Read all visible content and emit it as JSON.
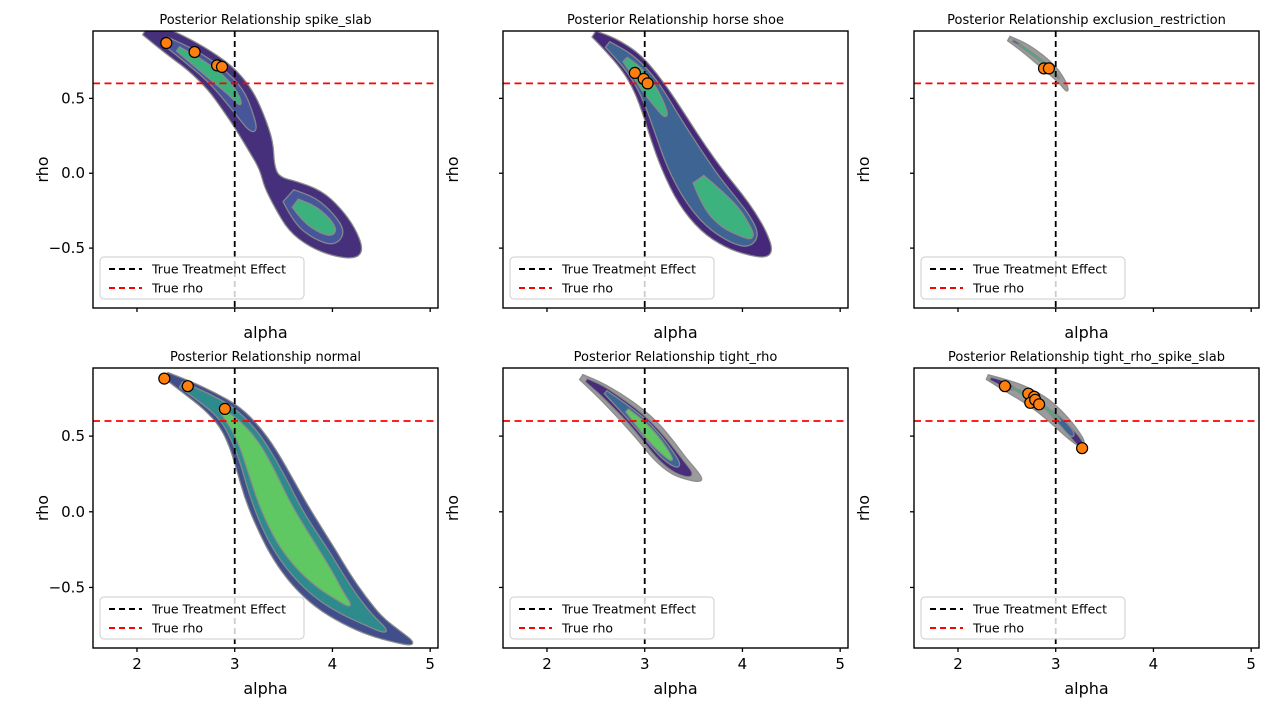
{
  "figure": {
    "background": "#ffffff",
    "xlabel": "alpha",
    "ylabel": "rho",
    "x_domain": [
      1.55,
      5.08
    ],
    "y_domain": [
      -0.9,
      0.95
    ],
    "x_ticks": [
      2,
      3,
      4,
      5
    ],
    "x_tick_labels": [
      "2",
      "3",
      "4",
      "5"
    ],
    "y_ticks": [
      0.5,
      0.0,
      -0.5
    ],
    "y_tick_labels": [
      "0.5",
      "0.0",
      "−0.5"
    ],
    "true_treatment_effect_alpha": 3.0,
    "true_rho": 0.6,
    "legend": {
      "items": [
        {
          "label": "True Treatment Effect",
          "color": "#000000"
        },
        {
          "label": "True rho",
          "color": "#ff0000"
        }
      ]
    },
    "colors": {
      "scatter_fill": "#ff7f0e",
      "scatter_edge": "#000000",
      "contour_line": "#8a8a8a",
      "true_effect_line": "#000000",
      "true_rho_line": "#ff0000",
      "axes_edge": "#000000"
    }
  },
  "chart_data": [
    {
      "type": "contour",
      "id": "spike_slab",
      "title": "Posterior Relationship spike_slab",
      "scatter": [
        [
          2.3,
          0.87
        ],
        [
          2.59,
          0.81
        ],
        [
          2.82,
          0.72
        ],
        [
          2.87,
          0.71
        ]
      ],
      "bands": [
        {
          "color": "#46307c",
          "spine": [
            [
              2.1,
              0.97
            ],
            [
              2.35,
              0.87
            ],
            [
              2.6,
              0.77
            ],
            [
              2.85,
              0.64
            ],
            [
              3.02,
              0.5
            ],
            [
              3.15,
              0.35
            ],
            [
              3.27,
              0.18
            ],
            [
              3.33,
              0.04
            ],
            [
              3.38,
              -0.06
            ],
            [
              3.52,
              -0.14
            ],
            [
              3.72,
              -0.25
            ],
            [
              3.92,
              -0.36
            ],
            [
              4.12,
              -0.46
            ],
            [
              4.28,
              -0.54
            ]
          ],
          "widths": [
            16,
            24,
            28,
            34,
            36,
            32,
            26,
            15,
            18,
            34,
            52,
            50,
            36,
            12
          ]
        },
        {
          "color": "#47569b",
          "spine": [
            [
              2.3,
              0.88
            ],
            [
              2.55,
              0.78
            ],
            [
              2.8,
              0.66
            ],
            [
              3.0,
              0.52
            ],
            [
              3.12,
              0.38
            ],
            [
              3.2,
              0.28
            ]
          ],
          "widths": [
            9,
            16,
            20,
            22,
            15,
            7
          ]
        },
        {
          "color": "#47569b",
          "spine": [
            [
              3.55,
              -0.15
            ],
            [
              3.72,
              -0.25
            ],
            [
              3.92,
              -0.36
            ],
            [
              4.08,
              -0.44
            ]
          ],
          "widths": [
            16,
            34,
            32,
            17
          ]
        },
        {
          "color": "#3bb27d",
          "spine": [
            [
              2.42,
              0.83
            ],
            [
              2.62,
              0.74
            ],
            [
              2.82,
              0.64
            ],
            [
              2.98,
              0.54
            ],
            [
              3.06,
              0.46
            ]
          ],
          "widths": [
            5,
            10,
            12,
            9,
            4
          ]
        },
        {
          "color": "#3bb27d",
          "spine": [
            [
              3.62,
              -0.2
            ],
            [
              3.76,
              -0.27
            ],
            [
              3.92,
              -0.35
            ],
            [
              4.02,
              -0.4
            ]
          ],
          "widths": [
            10,
            20,
            18,
            8
          ]
        }
      ]
    },
    {
      "type": "contour",
      "id": "horse_shoe",
      "title": "Posterior Relationship horse shoe",
      "scatter": [
        [
          2.9,
          0.67
        ],
        [
          2.99,
          0.63
        ],
        [
          3.03,
          0.6
        ]
      ],
      "bands": [
        {
          "color": "#46287b",
          "spine": [
            [
              2.48,
              0.93
            ],
            [
              2.65,
              0.86
            ],
            [
              2.85,
              0.75
            ],
            [
              3.0,
              0.62
            ],
            [
              3.12,
              0.48
            ],
            [
              3.25,
              0.3
            ],
            [
              3.4,
              0.1
            ],
            [
              3.58,
              -0.1
            ],
            [
              3.78,
              -0.26
            ],
            [
              3.98,
              -0.38
            ],
            [
              4.15,
              -0.47
            ],
            [
              4.28,
              -0.54
            ]
          ],
          "widths": [
            7,
            16,
            24,
            28,
            34,
            42,
            50,
            56,
            56,
            46,
            30,
            10
          ]
        },
        {
          "color": "#3d6493",
          "spine": [
            [
              2.62,
              0.86
            ],
            [
              2.82,
              0.76
            ],
            [
              3.0,
              0.62
            ],
            [
              3.12,
              0.48
            ],
            [
              3.25,
              0.3
            ],
            [
              3.4,
              0.1
            ],
            [
              3.58,
              -0.1
            ],
            [
              3.78,
              -0.26
            ],
            [
              3.98,
              -0.38
            ],
            [
              4.12,
              -0.46
            ]
          ],
          "widths": [
            7,
            15,
            20,
            24,
            30,
            38,
            42,
            42,
            33,
            16
          ]
        },
        {
          "color": "#3cb37e",
          "spine": [
            [
              2.8,
              0.76
            ],
            [
              2.92,
              0.68
            ],
            [
              3.05,
              0.56
            ],
            [
              3.15,
              0.46
            ],
            [
              3.22,
              0.38
            ]
          ],
          "widths": [
            6,
            12,
            14,
            10,
            5
          ]
        },
        {
          "color": "#3cb37e",
          "spine": [
            [
              3.55,
              -0.04
            ],
            [
              3.7,
              -0.18
            ],
            [
              3.88,
              -0.3
            ],
            [
              4.02,
              -0.38
            ],
            [
              4.1,
              -0.43
            ]
          ],
          "widths": [
            13,
            26,
            26,
            15,
            6
          ]
        }
      ]
    },
    {
      "type": "contour",
      "id": "exclusion_restriction",
      "title": "Posterior Relationship exclusion_restriction",
      "scatter": [
        [
          2.88,
          0.7
        ],
        [
          2.93,
          0.7
        ]
      ],
      "bands": [
        {
          "color": "#9b9b9b",
          "spine": [
            [
              2.52,
              0.9
            ],
            [
              2.68,
              0.84
            ],
            [
              2.84,
              0.76
            ],
            [
              2.98,
              0.68
            ],
            [
              3.08,
              0.6
            ],
            [
              3.12,
              0.55
            ]
          ],
          "widths": [
            5,
            9,
            11,
            10,
            6,
            3
          ]
        },
        {
          "color": "#3d6493",
          "spine": [
            [
              2.56,
              0.885
            ],
            [
              2.66,
              0.85
            ]
          ],
          "widths": [
            2.5,
            2.5
          ]
        },
        {
          "color": "#3bb27d",
          "spine": [
            [
              2.62,
              0.86
            ],
            [
              2.8,
              0.78
            ],
            [
              2.95,
              0.7
            ],
            [
              3.04,
              0.63
            ]
          ],
          "widths": [
            2,
            2.5,
            2.5,
            2
          ]
        }
      ]
    },
    {
      "type": "contour",
      "id": "normal",
      "title": "Posterior Relationship normal",
      "scatter": [
        [
          2.28,
          0.88
        ],
        [
          2.52,
          0.83
        ],
        [
          2.9,
          0.68
        ]
      ],
      "bands": [
        {
          "color": "#404f8b",
          "spine": [
            [
              2.3,
              0.9
            ],
            [
              2.52,
              0.82
            ],
            [
              2.75,
              0.73
            ],
            [
              2.95,
              0.63
            ],
            [
              3.1,
              0.5
            ],
            [
              3.22,
              0.35
            ],
            [
              3.35,
              0.15
            ],
            [
              3.5,
              -0.05
            ],
            [
              3.65,
              -0.22
            ],
            [
              3.82,
              -0.38
            ],
            [
              4.0,
              -0.52
            ],
            [
              4.22,
              -0.65
            ],
            [
              4.45,
              -0.76
            ],
            [
              4.68,
              -0.83
            ],
            [
              4.82,
              -0.87
            ]
          ],
          "widths": [
            7,
            14,
            20,
            28,
            36,
            44,
            52,
            56,
            58,
            56,
            48,
            36,
            22,
            12,
            5
          ]
        },
        {
          "color": "#2d8a8d",
          "spine": [
            [
              2.45,
              0.84
            ],
            [
              2.7,
              0.75
            ],
            [
              2.92,
              0.65
            ],
            [
              3.08,
              0.52
            ],
            [
              3.2,
              0.38
            ],
            [
              3.33,
              0.18
            ],
            [
              3.47,
              -0.03
            ],
            [
              3.62,
              -0.2
            ],
            [
              3.8,
              -0.36
            ],
            [
              3.98,
              -0.5
            ],
            [
              4.18,
              -0.62
            ],
            [
              4.38,
              -0.72
            ],
            [
              4.55,
              -0.79
            ]
          ],
          "widths": [
            6,
            12,
            18,
            26,
            32,
            40,
            44,
            46,
            44,
            36,
            24,
            12,
            5
          ]
        },
        {
          "color": "#5fc863",
          "spine": [
            [
              2.85,
              0.68
            ],
            [
              3.02,
              0.57
            ],
            [
              3.16,
              0.43
            ],
            [
              3.28,
              0.25
            ],
            [
              3.42,
              0.03
            ],
            [
              3.57,
              -0.15
            ],
            [
              3.74,
              -0.31
            ],
            [
              3.92,
              -0.45
            ],
            [
              4.08,
              -0.56
            ],
            [
              4.18,
              -0.62
            ]
          ],
          "widths": [
            4,
            12,
            20,
            26,
            30,
            32,
            30,
            22,
            10,
            4
          ]
        }
      ]
    },
    {
      "type": "contour",
      "id": "tight_rho",
      "title": "Posterior Relationship tight_rho",
      "scatter": [],
      "bands": [
        {
          "color": "#9b9b9b",
          "spine": [
            [
              2.35,
              0.89
            ],
            [
              2.52,
              0.82
            ],
            [
              2.7,
              0.73
            ],
            [
              2.88,
              0.63
            ],
            [
              3.05,
              0.52
            ],
            [
              3.2,
              0.4
            ],
            [
              3.35,
              0.3
            ],
            [
              3.5,
              0.24
            ],
            [
              3.58,
              0.21
            ]
          ],
          "widths": [
            6,
            13,
            19,
            24,
            27,
            27,
            22,
            12,
            4
          ]
        },
        {
          "color": "#472d7b",
          "spine": [
            [
              2.4,
              0.87
            ],
            [
              2.55,
              0.81
            ],
            [
              2.72,
              0.72
            ],
            [
              2.9,
              0.62
            ],
            [
              3.07,
              0.5
            ],
            [
              3.22,
              0.38
            ],
            [
              3.36,
              0.29
            ],
            [
              3.48,
              0.24
            ]
          ],
          "widths": [
            4,
            9,
            13,
            17,
            20,
            20,
            15,
            6
          ]
        },
        {
          "color": "#3a6896",
          "spine": [
            [
              2.6,
              0.79
            ],
            [
              2.78,
              0.69
            ],
            [
              2.95,
              0.59
            ],
            [
              3.1,
              0.48
            ],
            [
              3.24,
              0.37
            ],
            [
              3.35,
              0.3
            ]
          ],
          "widths": [
            4,
            9,
            13,
            15,
            13,
            6
          ]
        },
        {
          "color": "#5fc863",
          "spine": [
            [
              2.82,
              0.67
            ],
            [
              2.96,
              0.58
            ],
            [
              3.08,
              0.49
            ],
            [
              3.2,
              0.4
            ],
            [
              3.28,
              0.34
            ]
          ],
          "widths": [
            4,
            9,
            11,
            8,
            3
          ]
        }
      ]
    },
    {
      "type": "contour",
      "id": "tight_rho_spike_slab",
      "title": "Posterior Relationship tight_rho_spike_slab",
      "scatter": [
        [
          2.48,
          0.83
        ],
        [
          2.72,
          0.78
        ],
        [
          2.78,
          0.76
        ],
        [
          2.74,
          0.72
        ],
        [
          2.79,
          0.74
        ],
        [
          2.83,
          0.71
        ],
        [
          3.27,
          0.42
        ]
      ],
      "bands": [
        {
          "color": "#9b9b9b",
          "spine": [
            [
              2.3,
              0.89
            ],
            [
              2.48,
              0.84
            ],
            [
              2.68,
              0.78
            ],
            [
              2.88,
              0.7
            ],
            [
              3.05,
              0.6
            ],
            [
              3.18,
              0.51
            ],
            [
              3.28,
              0.44
            ]
          ],
          "widths": [
            5,
            11,
            15,
            17,
            16,
            13,
            7
          ]
        },
        {
          "color": "#472d7b",
          "spine": [
            [
              2.33,
              0.88
            ],
            [
              2.45,
              0.85
            ],
            [
              2.58,
              0.81
            ]
          ],
          "widths": [
            3,
            6,
            5
          ]
        },
        {
          "color": "#472d7b",
          "spine": [
            [
              3.1,
              0.57
            ],
            [
              3.2,
              0.49
            ],
            [
              3.28,
              0.43
            ]
          ],
          "widths": [
            6,
            8,
            5
          ]
        },
        {
          "color": "#3d6493",
          "spine": [
            [
              2.95,
              0.66
            ],
            [
              3.08,
              0.58
            ],
            [
              3.18,
              0.5
            ]
          ],
          "widths": [
            4,
            7,
            6
          ]
        },
        {
          "color": "#3bb27d",
          "spine": [
            [
              2.55,
              0.82
            ],
            [
              2.75,
              0.76
            ],
            [
              2.95,
              0.66
            ],
            [
              3.05,
              0.6
            ]
          ],
          "widths": [
            2,
            3,
            3,
            2
          ]
        }
      ]
    }
  ]
}
